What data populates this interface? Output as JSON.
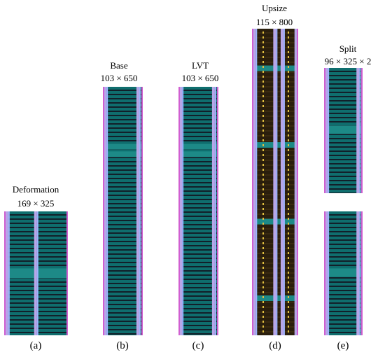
{
  "panels": [
    {
      "id": "a",
      "name": "Deformation",
      "dims": "169 × 325",
      "caption": "(a)"
    },
    {
      "id": "b",
      "name": "Base",
      "dims": "103 × 650",
      "caption": "(b)"
    },
    {
      "id": "c",
      "name": "LVT",
      "dims": "103 × 650",
      "caption": "(c)"
    },
    {
      "id": "d",
      "name": "Upsize",
      "dims": "115 × 800",
      "caption": "(d)"
    },
    {
      "id": "e",
      "name": "Split",
      "dims": "96 × 325 × 2",
      "caption": "(e)"
    }
  ],
  "colors": {
    "cell_teal": "#0f6e6e",
    "row_dark": "#12202a",
    "power_rail": "#b7a6e8",
    "edge_magenta": "#d05fd0",
    "signal_blue": "#9fb4ff",
    "upsize_fill": "#3a2a10",
    "upsize_pins": "#e0c040"
  }
}
